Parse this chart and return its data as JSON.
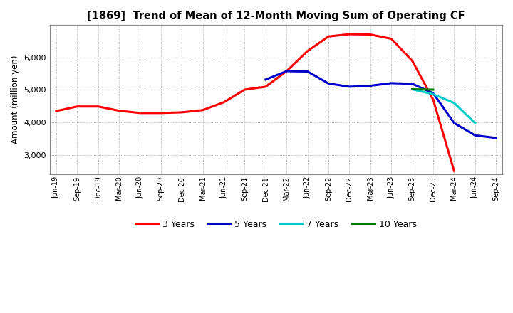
{
  "title": "[1869]  Trend of Mean of 12-Month Moving Sum of Operating CF",
  "ylabel": "Amount (million yen)",
  "x_labels": [
    "Jun-19",
    "Sep-19",
    "Dec-19",
    "Mar-20",
    "Jun-20",
    "Sep-20",
    "Dec-20",
    "Mar-21",
    "Jun-21",
    "Sep-21",
    "Dec-21",
    "Mar-22",
    "Jun-22",
    "Sep-22",
    "Dec-22",
    "Mar-23",
    "Jun-23",
    "Sep-23",
    "Dec-23",
    "Mar-24",
    "Jun-24",
    "Sep-24"
  ],
  "ylim": [
    2400,
    7000
  ],
  "yticks": [
    3000,
    4000,
    5000,
    6000
  ],
  "series": {
    "3 Years": {
      "color": "#ff0000",
      "values": [
        4350,
        4490,
        4490,
        4360,
        4290,
        4290,
        4310,
        4380,
        4620,
        5010,
        5100,
        5580,
        6200,
        6650,
        6720,
        6710,
        6580,
        5900,
        4700,
        2500,
        null,
        null
      ]
    },
    "5 Years": {
      "color": "#0000cc",
      "values": [
        null,
        null,
        null,
        null,
        null,
        null,
        null,
        null,
        null,
        null,
        5320,
        5580,
        5570,
        5200,
        5100,
        5130,
        5210,
        5190,
        4900,
        3980,
        3600,
        3520
      ]
    },
    "7 Years": {
      "color": "#00cccc",
      "values": [
        null,
        null,
        null,
        null,
        null,
        null,
        null,
        null,
        null,
        null,
        null,
        null,
        null,
        null,
        null,
        null,
        null,
        5020,
        4870,
        4600,
        3980,
        null
      ]
    },
    "10 Years": {
      "color": "#008000",
      "values": [
        null,
        null,
        null,
        null,
        null,
        null,
        null,
        null,
        null,
        null,
        null,
        null,
        null,
        null,
        null,
        null,
        null,
        5020,
        5010,
        null,
        null,
        null
      ]
    }
  },
  "legend_labels": [
    "3 Years",
    "5 Years",
    "7 Years",
    "10 Years"
  ],
  "legend_colors": [
    "#ff0000",
    "#0000cc",
    "#00cccc",
    "#008000"
  ],
  "background_color": "#ffffff",
  "grid_color": "#aaaaaa"
}
